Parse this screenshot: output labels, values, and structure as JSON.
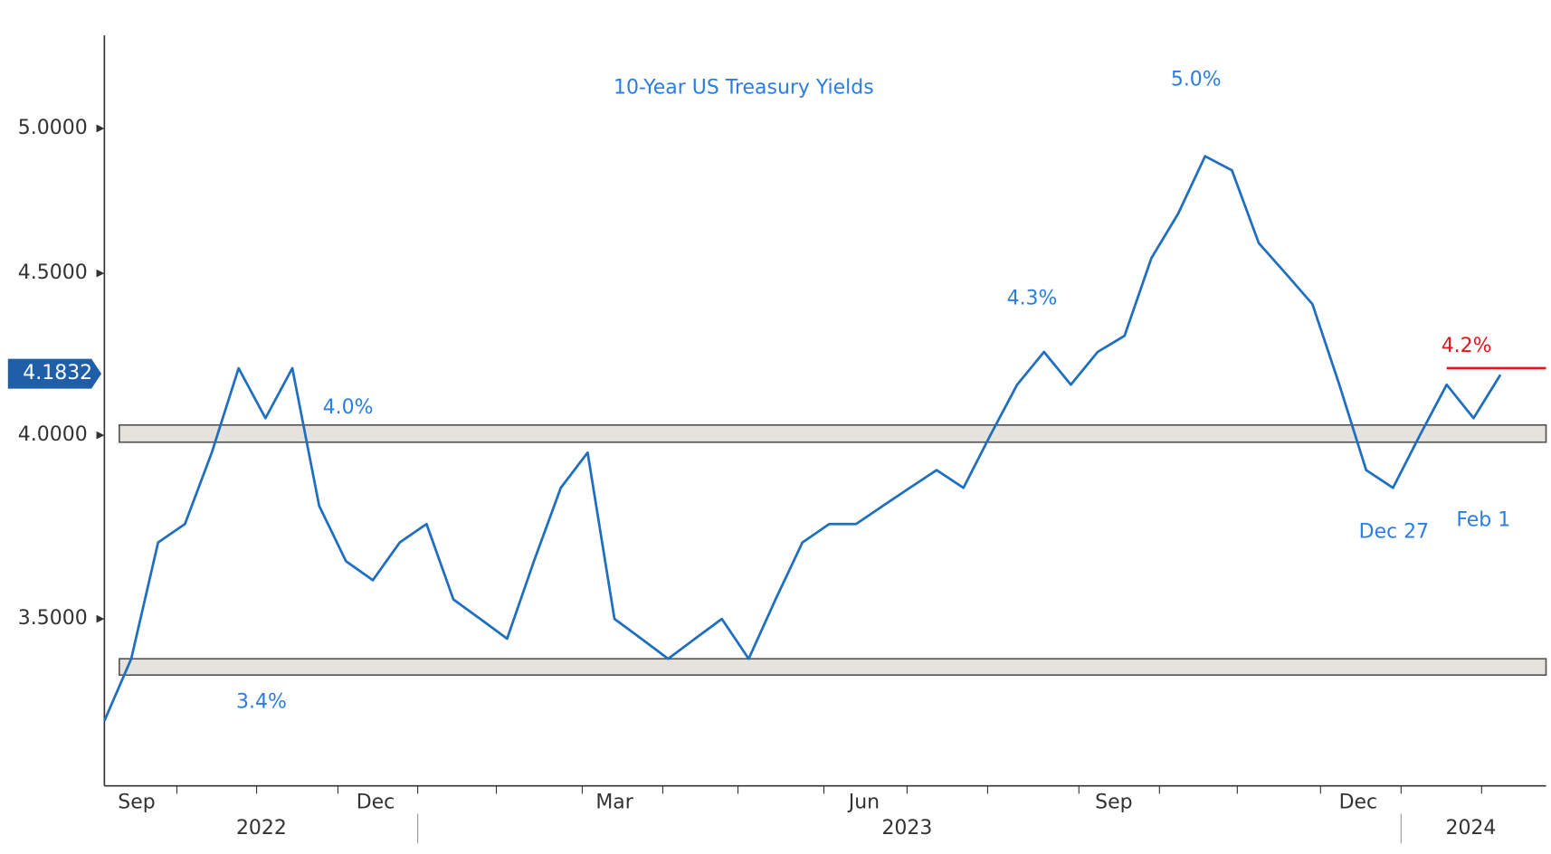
{
  "chart_data": {
    "type": "line",
    "title": "10-Year US Treasury Yields",
    "series": [
      {
        "name": "10-Year US Treasury Yield",
        "color": "#1f6fc0",
        "values": [
          3.25,
          3.4,
          3.7,
          3.75,
          3.95,
          4.2,
          4.05,
          4.2,
          3.8,
          3.65,
          3.6,
          3.7,
          3.75,
          3.55,
          3.5,
          3.45,
          3.65,
          3.85,
          3.95,
          3.5,
          3.45,
          3.4,
          3.45,
          3.5,
          3.4,
          3.55,
          3.7,
          3.75,
          3.75,
          3.8,
          3.85,
          3.9,
          3.85,
          4.0,
          4.15,
          4.25,
          4.15,
          4.25,
          4.3,
          4.55,
          4.7,
          4.9,
          4.85,
          4.6,
          4.5,
          4.4,
          4.15,
          3.9,
          3.85,
          4.0,
          4.15,
          4.05,
          4.18
        ]
      }
    ],
    "xlim": [
      0,
      53.7
    ],
    "xticks": [
      {
        "value": 1.2,
        "label": "Sep"
      },
      {
        "value": 10.1,
        "label": "Dec"
      },
      {
        "value": 19.0,
        "label": "Mar"
      },
      {
        "value": 28.3,
        "label": "Jun"
      },
      {
        "value": 37.6,
        "label": "Sep"
      },
      {
        "value": 46.7,
        "label": "Dec"
      }
    ],
    "minor_xticks": [
      2.7,
      5.67,
      8.7,
      11.67,
      14.6,
      17.8,
      20.8,
      23.6,
      26.8,
      29.9,
      32.9,
      36.3,
      39.3,
      42.2,
      45.3,
      48.3,
      51.3
    ],
    "year_labels": [
      {
        "value": 5.85,
        "label": "2022"
      },
      {
        "value": 29.9,
        "label": "2023"
      },
      {
        "value": 50.9,
        "label": "2024"
      }
    ],
    "year_breaks": [
      11.67,
      48.3
    ],
    "ylim": [
      3.1,
      5.35
    ],
    "log_scale": true,
    "yticks": [
      {
        "value": 3.5,
        "label": "3.5000"
      },
      {
        "value": 4.0,
        "label": "4.0000"
      },
      {
        "value": 4.5,
        "label": "4.5000"
      },
      {
        "value": 5.0,
        "label": "5.0000"
      }
    ],
    "last_value": {
      "value": 4.1832,
      "label": "4.1832"
    },
    "bands": [
      {
        "from": 3.98,
        "to": 4.03
      },
      {
        "from": 3.36,
        "to": 3.4
      }
    ],
    "resistance": {
      "value": 4.2,
      "from": 50,
      "to": 53.7,
      "color": "#e8141c"
    },
    "annotations": [
      "5.0%",
      "4.3%",
      "4.0%",
      "3.4%",
      "4.2%",
      "Dec 27",
      "Feb 1"
    ]
  }
}
